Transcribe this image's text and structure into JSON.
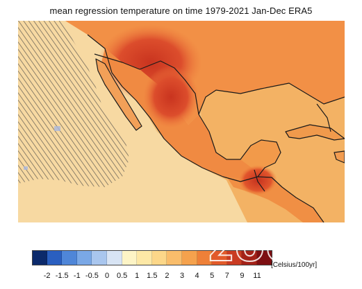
{
  "title": "mean regression temperature on time 1979-2021 Jan-Dec ERA5",
  "map": {
    "region": "Mexico and Central America",
    "variable": "temperature trend",
    "hatching": "statistically insignificant areas over eastern Pacific"
  },
  "colorbar": {
    "unit_label": "[Celsius/100yr]",
    "ticks": [
      "-2",
      "-1.5",
      "-1",
      "-0.5",
      "0",
      "0.5",
      "1",
      "1.5",
      "2",
      "3",
      "4",
      "5",
      "7",
      "9",
      "11"
    ],
    "colors": [
      "#0c2a6b",
      "#2a5fc0",
      "#4f86d8",
      "#7aa8e6",
      "#a9c6ee",
      "#d8e4f4",
      "#fdf4c6",
      "#fde8a6",
      "#fcd789",
      "#f9bd6b",
      "#f5a24d",
      "#ee8038",
      "#e25a2a",
      "#c93b22",
      "#a42218",
      "#7d0f12"
    ]
  },
  "watermark": "zoom",
  "palette": {
    "ocean_base": "#f3c27c",
    "land_base": "#f5a04e",
    "hot_core": "#d4402a",
    "cool_zone": "#f7dca4"
  }
}
